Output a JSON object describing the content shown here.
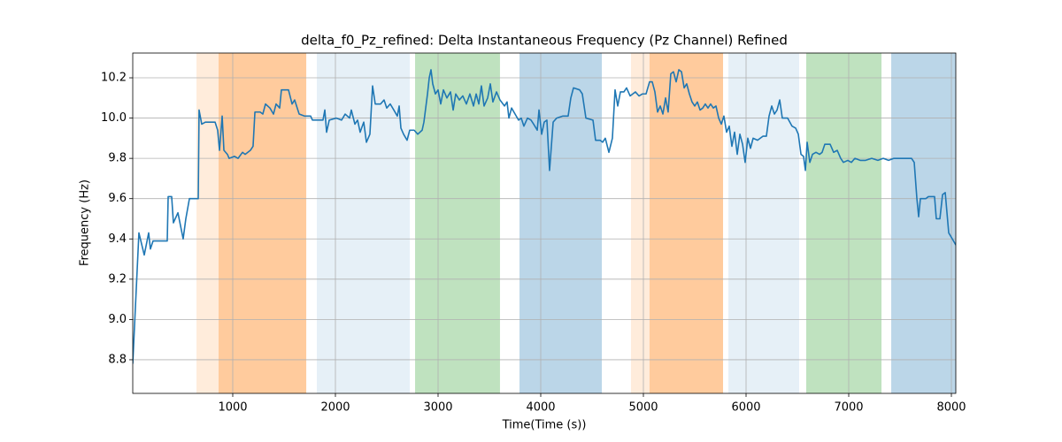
{
  "chart_data": {
    "type": "line",
    "title": "delta_f0_Pz_refined: Delta Instantaneous Frequency (Pz Channel) Refined",
    "xlabel": "Time(Time (s))",
    "ylabel": "Frequency (Hz)",
    "color": "#1f77b4",
    "grid": true,
    "xlim": [
      26,
      8043
    ],
    "ylim": [
      8.633,
      10.323
    ],
    "xticks": [
      1000,
      2000,
      3000,
      4000,
      5000,
      6000,
      7000,
      8000
    ],
    "yticks": [
      8.8,
      {
        "value": 9.0,
        "label": "9.0"
      },
      9.2,
      9.4,
      9.6,
      9.8,
      {
        "value": 10.0,
        "label": "10.0"
      },
      10.2
    ],
    "spans": [
      {
        "start": 647,
        "end": 1716,
        "color": "#ff7f0e",
        "opacity": 0.15
      },
      {
        "start": 862,
        "end": 1716,
        "color": "#ff7f0e",
        "opacity": 0.3
      },
      {
        "start": 1819,
        "end": 2724,
        "color": "#1f77b4",
        "opacity": 0.11
      },
      {
        "start": 2776,
        "end": 3603,
        "color": "#2ca02c",
        "opacity": 0.3
      },
      {
        "start": 3793,
        "end": 4595,
        "color": "#1f77b4",
        "opacity": 0.3
      },
      {
        "start": 4879,
        "end": 5776,
        "color": "#ff7f0e",
        "opacity": 0.15
      },
      {
        "start": 5060,
        "end": 5776,
        "color": "#ff7f0e",
        "opacity": 0.3
      },
      {
        "start": 5828,
        "end": 6517,
        "color": "#1f77b4",
        "opacity": 0.11
      },
      {
        "start": 6586,
        "end": 7319,
        "color": "#2ca02c",
        "opacity": 0.3
      },
      {
        "start": 7414,
        "end": 8043,
        "color": "#1f77b4",
        "opacity": 0.3
      }
    ],
    "x": [
      26,
      86,
      138,
      181,
      198,
      224,
      362,
      371,
      405,
      422,
      466,
      517,
      543,
      578,
      664,
      672,
      698,
      733,
      828,
      853,
      871,
      897,
      914,
      948,
      965,
      1017,
      1052,
      1095,
      1121,
      1172,
      1198,
      1216,
      1267,
      1293,
      1319,
      1362,
      1397,
      1422,
      1457,
      1474,
      1543,
      1578,
      1603,
      1647,
      1698,
      1759,
      1776,
      1879,
      1897,
      1914,
      1940,
      2009,
      2060,
      2095,
      2138,
      2155,
      2190,
      2216,
      2241,
      2276,
      2302,
      2336,
      2362,
      2388,
      2440,
      2474,
      2500,
      2534,
      2569,
      2603,
      2621,
      2638,
      2664,
      2698,
      2724,
      2767,
      2802,
      2845,
      2862,
      2897,
      2914,
      2931,
      2948,
      2974,
      3000,
      3026,
      3052,
      3086,
      3121,
      3147,
      3172,
      3207,
      3241,
      3276,
      3310,
      3345,
      3371,
      3397,
      3422,
      3448,
      3483,
      3509,
      3534,
      3569,
      3603,
      3647,
      3672,
      3690,
      3716,
      3750,
      3784,
      3810,
      3836,
      3871,
      3905,
      3931,
      3966,
      3983,
      4009,
      4034,
      4060,
      4086,
      4121,
      4155,
      4216,
      4267,
      4293,
      4319,
      4379,
      4405,
      4440,
      4509,
      4534,
      4578,
      4603,
      4629,
      4664,
      4698,
      4724,
      4750,
      4776,
      4810,
      4836,
      4871,
      4922,
      4957,
      4991,
      5026,
      5060,
      5086,
      5112,
      5138,
      5164,
      5190,
      5216,
      5241,
      5267,
      5293,
      5319,
      5345,
      5371,
      5397,
      5422,
      5448,
      5474,
      5500,
      5526,
      5552,
      5578,
      5603,
      5629,
      5655,
      5681,
      5707,
      5733,
      5759,
      5784,
      5810,
      5836,
      5862,
      5888,
      5914,
      5940,
      5966,
      5991,
      6017,
      6043,
      6069,
      6112,
      6164,
      6198,
      6224,
      6250,
      6276,
      6302,
      6328,
      6353,
      6405,
      6448,
      6483,
      6509,
      6535,
      6560,
      6578,
      6595,
      6621,
      6647,
      6681,
      6716,
      6741,
      6767,
      6819,
      6853,
      6888,
      6922,
      6948,
      6991,
      7026,
      7060,
      7112,
      7164,
      7224,
      7284,
      7336,
      7388,
      7440,
      7526,
      7612,
      7638,
      7664,
      7681,
      7698,
      7750,
      7776,
      7836,
      7853,
      7888,
      7914,
      7940,
      7974,
      8009,
      8043
    ],
    "values": [
      8.78,
      9.43,
      9.32,
      9.43,
      9.35,
      9.39,
      9.39,
      9.61,
      9.61,
      9.48,
      9.53,
      9.4,
      9.5,
      9.6,
      9.6,
      10.04,
      9.97,
      9.98,
      9.98,
      9.94,
      9.84,
      10.01,
      9.84,
      9.82,
      9.8,
      9.81,
      9.8,
      9.83,
      9.82,
      9.84,
      9.86,
      10.03,
      10.03,
      10.02,
      10.07,
      10.05,
      10.02,
      10.07,
      10.05,
      10.14,
      10.14,
      10.07,
      10.09,
      10.02,
      10.01,
      10.01,
      9.99,
      9.99,
      10.04,
      9.93,
      9.99,
      10.0,
      9.99,
      10.02,
      10.0,
      10.04,
      9.97,
      9.99,
      9.93,
      9.98,
      9.88,
      9.92,
      10.16,
      10.07,
      10.07,
      10.09,
      10.05,
      10.07,
      10.04,
      10.01,
      10.06,
      9.95,
      9.92,
      9.89,
      9.94,
      9.94,
      9.92,
      9.94,
      9.98,
      10.12,
      10.2,
      10.24,
      10.17,
      10.12,
      10.14,
      10.07,
      10.14,
      10.1,
      10.13,
      10.04,
      10.12,
      10.09,
      10.11,
      10.07,
      10.12,
      10.06,
      10.12,
      10.07,
      10.16,
      10.06,
      10.1,
      10.17,
      10.08,
      10.13,
      10.09,
      10.06,
      10.08,
      10.0,
      10.05,
      10.02,
      9.99,
      10.0,
      9.96,
      10.0,
      9.99,
      9.97,
      9.94,
      10.04,
      9.92,
      9.98,
      9.99,
      9.74,
      9.98,
      10.0,
      10.01,
      10.01,
      10.1,
      10.15,
      10.14,
      10.12,
      10.0,
      9.99,
      9.89,
      9.89,
      9.88,
      9.9,
      9.83,
      9.9,
      10.14,
      10.06,
      10.13,
      10.13,
      10.15,
      10.11,
      10.13,
      10.11,
      10.12,
      10.12,
      10.18,
      10.18,
      10.13,
      10.03,
      10.06,
      10.02,
      10.1,
      10.03,
      10.22,
      10.23,
      10.18,
      10.24,
      10.23,
      10.15,
      10.17,
      10.12,
      10.08,
      10.06,
      10.08,
      10.04,
      10.05,
      10.07,
      10.05,
      10.07,
      10.05,
      10.06,
      10.0,
      9.97,
      10.01,
      9.93,
      9.96,
      9.86,
      9.93,
      9.82,
      9.92,
      9.87,
      9.78,
      9.9,
      9.85,
      9.9,
      9.89,
      9.91,
      9.91,
      10.01,
      10.06,
      10.02,
      10.04,
      10.09,
      10.0,
      10.0,
      9.96,
      9.95,
      9.92,
      9.82,
      9.81,
      9.74,
      9.88,
      9.78,
      9.82,
      9.83,
      9.82,
      9.83,
      9.87,
      9.87,
      9.83,
      9.84,
      9.8,
      9.78,
      9.79,
      9.78,
      9.8,
      9.79,
      9.79,
      9.8,
      9.79,
      9.8,
      9.79,
      9.8,
      9.8,
      9.8,
      9.78,
      9.6,
      9.51,
      9.6,
      9.6,
      9.61,
      9.61,
      9.5,
      9.5,
      9.62,
      9.63,
      9.43,
      9.4,
      9.37
    ]
  }
}
